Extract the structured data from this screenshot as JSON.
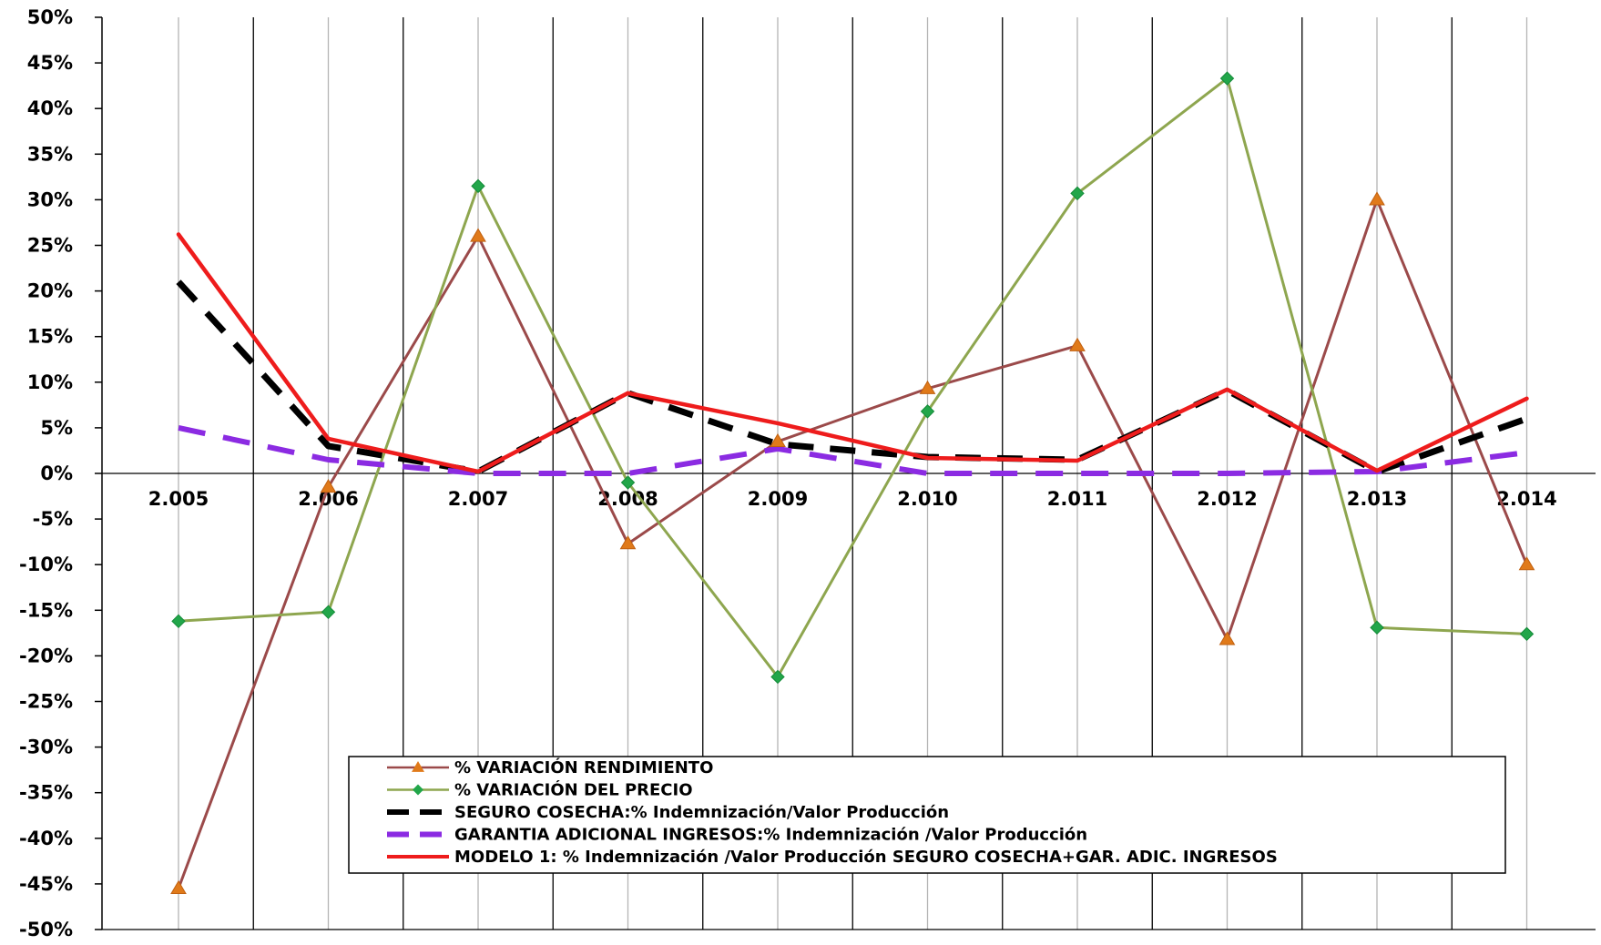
{
  "chart_data": {
    "type": "line",
    "categories": [
      "2.005",
      "2.006",
      "2.007",
      "2.008",
      "2.009",
      "2.010",
      "2.011",
      "2.012",
      "2.013",
      "2.014"
    ],
    "ylim": [
      -50,
      50
    ],
    "ytick_step": 5,
    "ytick_labels": [
      "50%",
      "45%",
      "40%",
      "35%",
      "30%",
      "25%",
      "20%",
      "15%",
      "10%",
      "5%",
      "0%",
      "-5%",
      "-10%",
      "-15%",
      "-20%",
      "-25%",
      "-30%",
      "-35%",
      "-40%",
      "-45%",
      "-50%"
    ],
    "grid": true,
    "legend_position": "bottom-center",
    "series": [
      {
        "name": "% VARIACIÓN RENDIMIENTO",
        "values": [
          -45.5,
          -1.5,
          26,
          -7.7,
          3.5,
          9.3,
          14,
          -18.2,
          30,
          -10
        ],
        "color": "#9b4a4a",
        "marker": "triangle",
        "marker_color": "#e07a1a"
      },
      {
        "name": "% VARIACIÓN DEL PRECIO",
        "values": [
          -16.2,
          -15.2,
          31.5,
          -1,
          -22.3,
          6.8,
          30.7,
          43.3,
          -16.9,
          -17.6
        ],
        "color": "#8ea64f",
        "marker": "diamond",
        "marker_color": "#22a64a"
      },
      {
        "name": "SEGURO COSECHA:% Indemnización/Valor Producción",
        "values": [
          21,
          3,
          0.2,
          8.8,
          3.2,
          1.8,
          1.5,
          9.1,
          0.2,
          6
        ],
        "color": "#000000",
        "dash": "dashed"
      },
      {
        "name": "GARANTIA ADICIONAL INGRESOS:% Indemnización /Valor Producción",
        "values": [
          5,
          1.5,
          0,
          0,
          2.7,
          0,
          0,
          0,
          0.2,
          2.3
        ],
        "color": "#8b2be2",
        "dash": "dashed"
      },
      {
        "name": "MODELO 1: % Indemnización /Valor Producción SEGURO COSECHA+GAR. ADIC. INGRESOS",
        "values": [
          26.2,
          3.8,
          0.2,
          8.8,
          5.5,
          1.7,
          1.4,
          9.2,
          0.3,
          8.2
        ],
        "color": "#ee1c1c",
        "dash": "solid"
      }
    ]
  }
}
